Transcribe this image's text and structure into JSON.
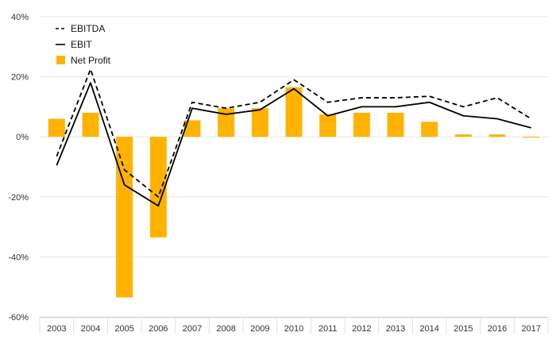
{
  "chart_data": {
    "type": "bar",
    "categories": [
      "2003",
      "2004",
      "2005",
      "2006",
      "2007",
      "2008",
      "2009",
      "2010",
      "2011",
      "2012",
      "2013",
      "2014",
      "2015",
      "2016",
      "2017"
    ],
    "series": [
      {
        "name": "EBITDA",
        "kind": "line",
        "style": "dashed",
        "color": "#000000",
        "values": [
          -6.5,
          22.5,
          -11,
          -20,
          11.5,
          9.5,
          11.5,
          19,
          11.5,
          13,
          13,
          13.5,
          10,
          13,
          6
        ]
      },
      {
        "name": "EBIT",
        "kind": "line",
        "style": "solid",
        "color": "#000000",
        "values": [
          -9.5,
          18,
          -16,
          -23,
          9.5,
          7.5,
          9,
          16,
          7,
          10,
          10,
          11.5,
          7,
          6,
          3
        ]
      },
      {
        "name": "Net Profit",
        "kind": "bar",
        "color": "#FFB300",
        "values": [
          6,
          8,
          -53.5,
          -33.5,
          5.5,
          9.5,
          9.5,
          16.5,
          7.5,
          8,
          8,
          5,
          0.8,
          0.8,
          -0.3
        ]
      }
    ],
    "y_ticks": [
      "40%",
      "20%",
      "0%",
      "-20%",
      "-40%",
      "-60%"
    ],
    "y_tick_values": [
      40,
      20,
      0,
      -20,
      -40,
      -60
    ],
    "ylim": [
      -60,
      40
    ],
    "grid": true,
    "legend": "top-left",
    "title": "",
    "xlabel": "",
    "ylabel": ""
  }
}
